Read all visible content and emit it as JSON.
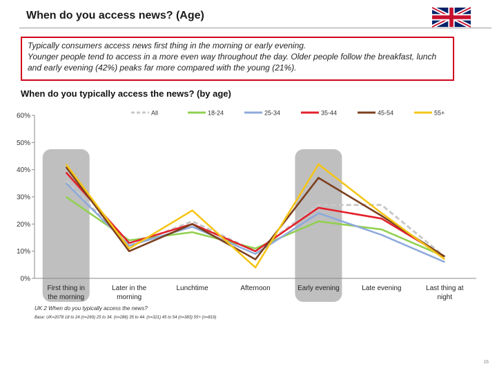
{
  "header": {
    "title": "When do you access news? (Age)"
  },
  "callout": {
    "line1": "Typically consumers access news first thing in the morning or early evening.",
    "line2": "Younger people tend to access in a more even way throughout the day. Older people follow the breakfast, lunch and early evening (42%) peaks far more  compared with the young (21%)."
  },
  "colors": {
    "accent": "#d0021b",
    "highlight_band": "#bfbfbf"
  },
  "chart_data": {
    "type": "line",
    "title": "When do you typically access the news? (by  age)",
    "categories": [
      "First thing in the morning",
      "Later in the morning",
      "Lunchtime",
      "Afternoon",
      "Early evening",
      "Late evening",
      "Last thing at night"
    ],
    "ylim": [
      0,
      60
    ],
    "yticks": [
      0,
      10,
      20,
      30,
      40,
      50,
      60
    ],
    "ytick_labels": [
      "0%",
      "10%",
      "20%",
      "30%",
      "40%",
      "50%",
      "60%"
    ],
    "highlighted_categories": [
      0,
      4
    ],
    "legend_position": "top",
    "series": [
      {
        "name": "All",
        "color": "#c8c8c8",
        "dashed": true,
        "values": [
          36,
          12,
          21,
          10,
          27,
          27,
          8
        ]
      },
      {
        "name": "18-24",
        "color": "#92d050",
        "dashed": false,
        "values": [
          30,
          14,
          17,
          11,
          21,
          18,
          8
        ]
      },
      {
        "name": "25-34",
        "color": "#8eaadb",
        "dashed": false,
        "values": [
          35,
          12,
          19,
          9,
          24,
          16,
          6
        ]
      },
      {
        "name": "35-44",
        "color": "#e3202b",
        "dashed": false,
        "values": [
          39,
          13,
          20,
          10,
          26,
          22,
          8
        ]
      },
      {
        "name": "45-54",
        "color": "#7b3f1e",
        "dashed": false,
        "values": [
          41,
          10,
          20,
          7,
          37,
          23,
          8
        ]
      },
      {
        "name": "55+",
        "color": "#f5c518",
        "dashed": false,
        "values": [
          42,
          11,
          25,
          4,
          42,
          24,
          7
        ]
      }
    ]
  },
  "footnotes": {
    "question": "UK 2 When do you typically access the news?",
    "base": "Base: UK=2078 18 to 24 (n=269) 25 to 34. (n=286) 35 to 44. (n=321) 45 to 54 (n=383) 55+ (n=819)"
  },
  "page_number": "16"
}
